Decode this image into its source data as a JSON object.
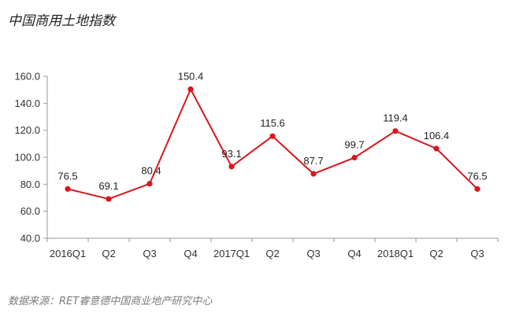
{
  "title": "中国商用土地指数",
  "source": "数据来源：RET睿意德中国商业地产研究中心",
  "chart_data": {
    "type": "line",
    "categories": [
      "2016Q1",
      "Q2",
      "Q3",
      "Q4",
      "2017Q1",
      "Q2",
      "Q3",
      "Q4",
      "2018Q1",
      "Q2",
      "Q3"
    ],
    "series": [
      {
        "values": [
          76.5,
          69.1,
          80.4,
          150.4,
          93.1,
          115.6,
          87.7,
          99.7,
          119.4,
          106.4,
          76.5
        ]
      }
    ],
    "ylim": [
      40,
      160
    ],
    "yticks": [
      "40.0",
      "60.0",
      "80.0",
      "100.0",
      "120.0",
      "140.0",
      "160.0"
    ],
    "data_labels": [
      "76.5",
      "69.1",
      "80.4",
      "150.4",
      "93.1",
      "115.6",
      "87.7",
      "99.7",
      "119.4",
      "106.4",
      "76.5"
    ],
    "xlabel": "",
    "ylabel": "",
    "grid": false,
    "line_color": "#d9161c"
  }
}
